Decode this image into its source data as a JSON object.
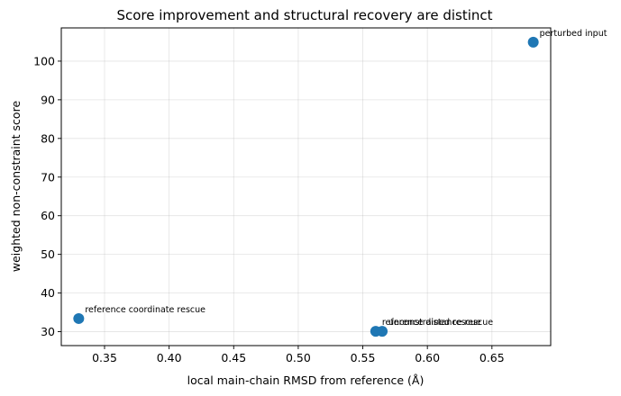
{
  "chart_data": {
    "type": "scatter",
    "title": "Score improvement and structural recovery are distinct",
    "xlabel": "local main-chain RMSD from reference (Å)",
    "ylabel": "weighted non-constraint score",
    "xlim": [
      0.3165,
      0.6955
    ],
    "ylim": [
      26.4,
      108.6
    ],
    "xticks": [
      "0.35",
      "0.40",
      "0.45",
      "0.50",
      "0.55",
      "0.60",
      "0.65"
    ],
    "yticks": [
      "30",
      "40",
      "50",
      "60",
      "70",
      "80",
      "90",
      "100"
    ],
    "grid": true,
    "marker_color": "#1f77b4",
    "points": [
      {
        "label": "perturbed input",
        "x": 0.682,
        "y": 104.9
      },
      {
        "label": "reference coordinate rescue",
        "x": 0.33,
        "y": 33.4
      },
      {
        "label": "reference distance rescue",
        "x": 0.56,
        "y": 30.1
      },
      {
        "label": "unconstrained rescue",
        "x": 0.565,
        "y": 30.1
      }
    ]
  }
}
